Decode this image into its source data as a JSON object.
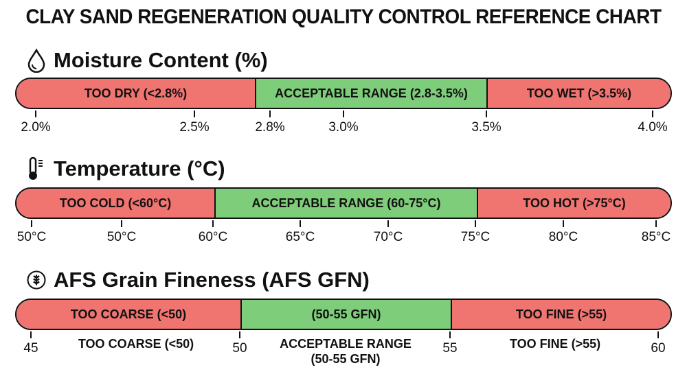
{
  "title": "CLAY SAND REGENERATION QUALITY CONTROL REFERENCE CHART",
  "colors": {
    "out_of_range": "#f07470",
    "acceptable": "#7ecd7a"
  },
  "moisture": {
    "icon": "water-drop-icon",
    "heading": "Moisture Content (%)",
    "segments": [
      "TOO DRY (<2.8%)",
      "ACCEPTABLE RANGE (2.8-3.5%)",
      "TOO WET (>3.5%)"
    ],
    "ticks": [
      "2.0%",
      "2.5%",
      "2.8%",
      "3.0%",
      "3.5%",
      "4.0%"
    ]
  },
  "temperature": {
    "icon": "thermometer-icon",
    "heading": "Temperature (°C)",
    "segments": [
      "TOO COLD (<60°C)",
      "ACCEPTABLE RANGE (60-75°C)",
      "TOO HOT (>75°C)"
    ],
    "ticks": [
      "50°C",
      "50°C",
      "60°C",
      "65°C",
      "70°C",
      "75°C",
      "80°C",
      "85°C"
    ]
  },
  "grain": {
    "icon": "wheat-icon",
    "heading": "AFS Grain Fineness (AFS GFN)",
    "segments": [
      "TOO COARSE (<50)",
      "(50-55 GFN)",
      "TOO FINE (>55)"
    ],
    "ticks": [
      "45",
      "50",
      "55",
      "60"
    ],
    "below_labels": [
      "TOO COARSE (<50)",
      "ACCEPTABLE RANGE",
      "(50-55 GFN)",
      "TOO FINE (>55)"
    ]
  }
}
